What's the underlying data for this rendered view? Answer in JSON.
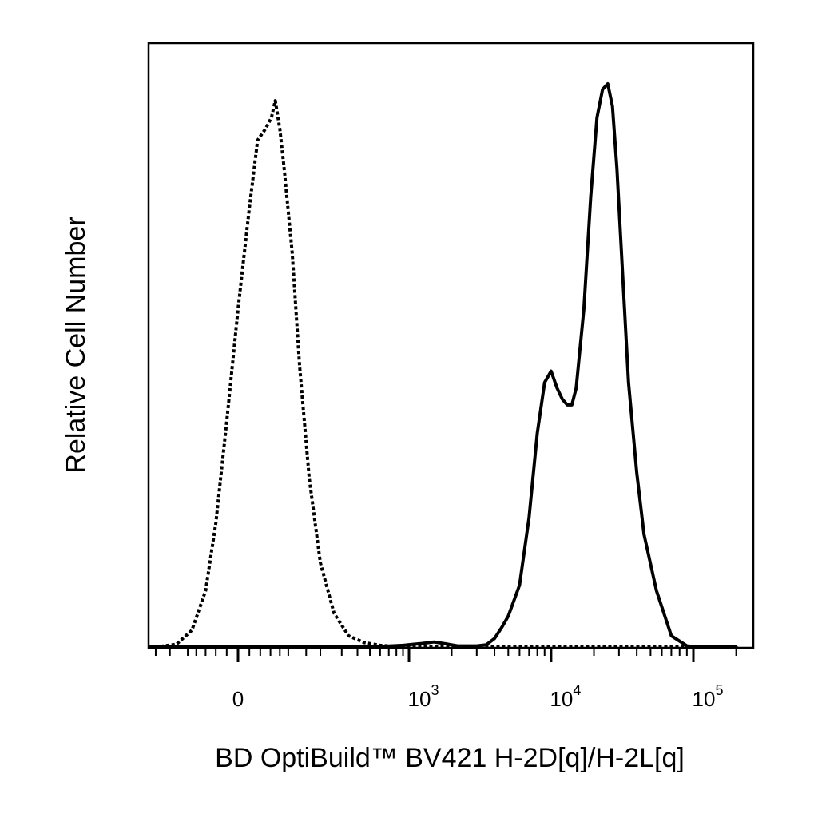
{
  "chart_data": {
    "type": "line",
    "title": "",
    "xlabel": "BD OptiBuild™ BV421 H-2D[q]/H-2L[q]",
    "ylabel": "Relative Cell Number",
    "x_scale": "biexponential",
    "xlim": [
      -300,
      200000
    ],
    "ylim": [
      0,
      100
    ],
    "grid": false,
    "legend": "none",
    "x_tick_labels": [
      {
        "value": 0,
        "base": "0",
        "exp": ""
      },
      {
        "value": 1000,
        "base": "10",
        "exp": "3"
      },
      {
        "value": 10000,
        "base": "10",
        "exp": "4"
      },
      {
        "value": 100000,
        "base": "10",
        "exp": "5"
      }
    ],
    "series": [
      {
        "style": "dotted",
        "color": "#000000",
        "x": [
          -300,
          -200,
          -130,
          -90,
          -60,
          -40,
          -20,
          0,
          20,
          35,
          50,
          62,
          70,
          80,
          90,
          110,
          130,
          160,
          200,
          260,
          340,
          450,
          600,
          800,
          1000,
          2000,
          10000,
          50000,
          200000
        ],
        "y": [
          0,
          0,
          0.5,
          3,
          10,
          22,
          40,
          60,
          78,
          90,
          92,
          94,
          97,
          92,
          85,
          70,
          50,
          30,
          15,
          6,
          2,
          0.8,
          0.3,
          0.1,
          0,
          0,
          0,
          0,
          0
        ]
      },
      {
        "style": "solid",
        "color": "#000000",
        "x": [
          -300,
          0,
          500,
          900,
          1200,
          1500,
          1800,
          2200,
          3000,
          3500,
          4000,
          4500,
          5000,
          6000,
          7000,
          8000,
          9000,
          10000,
          11000,
          12000,
          13000,
          14000,
          15000,
          17000,
          19000,
          21000,
          23000,
          25000,
          27000,
          29000,
          32000,
          35000,
          40000,
          45000,
          55000,
          70000,
          90000,
          110000,
          150000,
          200000
        ],
        "y": [
          0,
          0,
          0,
          0.3,
          0.6,
          0.9,
          0.6,
          0.2,
          0.2,
          0.4,
          1.5,
          3.5,
          5.5,
          11,
          23,
          38,
          47,
          49,
          46,
          44,
          43,
          43,
          46,
          60,
          80,
          94,
          99,
          100,
          96,
          85,
          65,
          47,
          31,
          20,
          10,
          2,
          0.2,
          0,
          0,
          0
        ]
      }
    ]
  }
}
